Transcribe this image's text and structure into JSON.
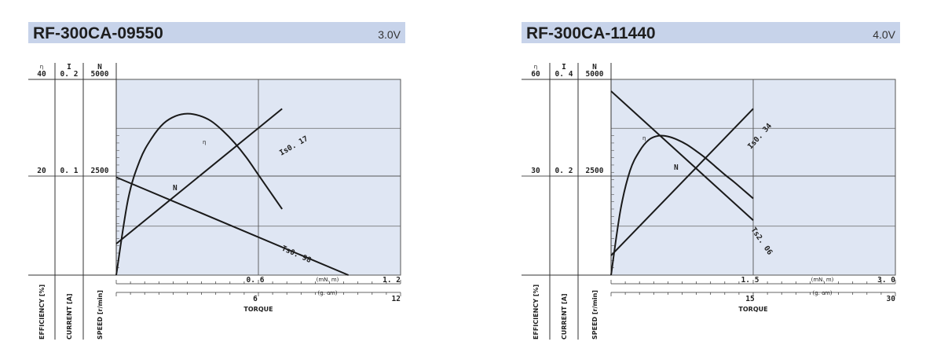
{
  "chart_data": [
    {
      "type": "line",
      "title": "RF-300CA-09550",
      "voltage": "3.0V",
      "left_headers": {
        "efficiency": "η",
        "current": "I",
        "speed": "N"
      },
      "left_axis_top": {
        "efficiency": "40",
        "current": "0. 2",
        "speed": "5000"
      },
      "left_axis_mid": {
        "efficiency": "20",
        "current": "0. 1",
        "speed": "2500"
      },
      "ylabels": [
        "EFFICIENCY [%]",
        "CURRENT [A]",
        "SPEED [r/min]"
      ],
      "xlabel": "TORQUE",
      "x_unit_mNm": "(mN. m)",
      "x_unit_gcm": "(g. cm)",
      "x_ticks_mNm": [
        "0. 6",
        "1. 2"
      ],
      "x_ticks_gcm": [
        "6",
        "12"
      ],
      "xlim_mNm": [
        0,
        1.2
      ],
      "ylim_speed": [
        0,
        5000
      ],
      "series": [
        {
          "name": "N",
          "label": "N",
          "end_label": "Ts0. 98",
          "x": [
            0,
            0.98
          ],
          "y": [
            2500,
            0
          ]
        },
        {
          "name": "I",
          "label": "Is0. 17",
          "x": [
            0,
            0.7
          ],
          "y": [
            0.032,
            0.17
          ]
        },
        {
          "name": "η",
          "label": "η",
          "x": [
            0,
            0.05,
            0.1,
            0.15,
            0.2,
            0.25,
            0.3,
            0.35,
            0.4,
            0.45,
            0.5,
            0.55,
            0.6,
            0.65,
            0.7
          ],
          "y": [
            0,
            15.5,
            23.5,
            28,
            31,
            32.5,
            33,
            32.6,
            31.5,
            29.5,
            27,
            24,
            20.5,
            17,
            13.5
          ]
        }
      ]
    },
    {
      "type": "line",
      "title": "RF-300CA-11440",
      "voltage": "4.0V",
      "left_headers": {
        "efficiency": "η",
        "current": "I",
        "speed": "N"
      },
      "left_axis_top": {
        "efficiency": "60",
        "current": "0. 4",
        "speed": "5000"
      },
      "left_axis_mid": {
        "efficiency": "30",
        "current": "0. 2",
        "speed": "2500"
      },
      "ylabels": [
        "EFFICIENCY [%]",
        "CURRENT [A]",
        "SPEED [r/min]"
      ],
      "xlabel": "TORQUE",
      "x_unit_mNm": "(mN. m)",
      "x_unit_gcm": "(g. cm)",
      "x_ticks_mNm": [
        "1. 5",
        "3. 0"
      ],
      "x_ticks_gcm": [
        "15",
        "30"
      ],
      "xlim_mNm": [
        0,
        3.0
      ],
      "ylim_speed": [
        0,
        5000
      ],
      "series": [
        {
          "name": "N",
          "label": "N",
          "end_label": "Ts2. 06",
          "x": [
            0,
            1.5
          ],
          "y": [
            4700,
            1400
          ]
        },
        {
          "name": "I",
          "label": "Is0. 34",
          "x": [
            0,
            1.5
          ],
          "y": [
            0.04,
            0.34
          ]
        },
        {
          "name": "η",
          "label": "η",
          "x": [
            0,
            0.1,
            0.2,
            0.3,
            0.4,
            0.5,
            0.6,
            0.7,
            0.8,
            0.9,
            1.0,
            1.1,
            1.2,
            1.3,
            1.4,
            1.5
          ],
          "y": [
            0,
            20,
            32,
            38,
            41.5,
            42.7,
            42.5,
            41.5,
            40,
            38,
            35.8,
            33.3,
            30.8,
            28.5,
            26,
            23.5
          ]
        }
      ]
    }
  ]
}
